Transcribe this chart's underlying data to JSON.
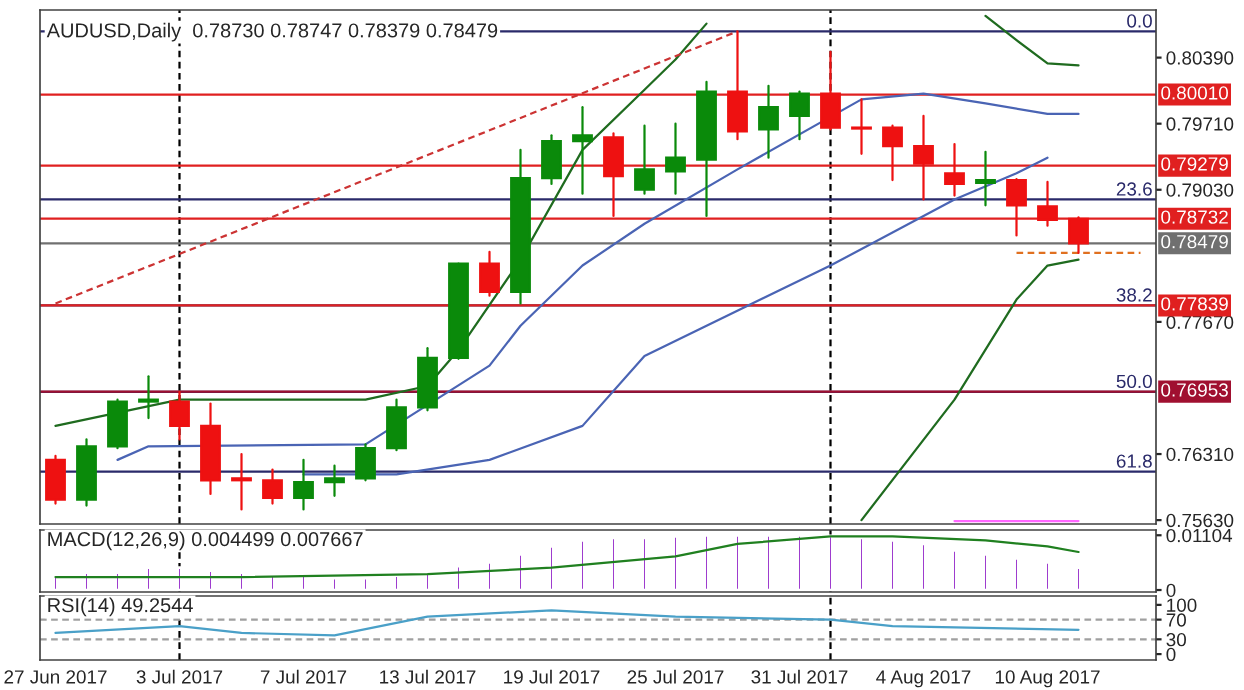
{
  "chart_data": [
    {
      "type": "candlestick",
      "title": "AUDUSD,Daily  0.78730 0.78747 0.78379 0.78479",
      "categories": [
        null,
        null,
        null,
        null,
        null,
        null,
        null,
        null,
        null,
        null,
        null,
        null,
        null,
        null,
        null,
        null,
        null,
        null,
        null,
        null,
        null,
        null,
        null,
        null,
        null,
        null,
        null,
        null,
        null,
        null,
        null,
        null,
        null,
        null,
        null,
        null
      ],
      "ohlc": [
        [
          0.7625,
          0.7629,
          0.758,
          0.7584
        ],
        [
          0.7584,
          0.7646,
          0.7578,
          0.7639
        ],
        [
          0.7639,
          0.7687,
          0.7637,
          0.7685
        ],
        [
          0.7685,
          0.7711,
          0.7668,
          0.7687
        ],
        [
          0.7685,
          0.7695,
          0.7646,
          0.766
        ],
        [
          0.766,
          0.7683,
          0.759,
          0.7604
        ],
        [
          0.7606,
          0.7631,
          0.7574,
          0.7604
        ],
        [
          0.7604,
          0.7615,
          0.758,
          0.7586
        ],
        [
          0.7586,
          0.7625,
          0.7574,
          0.7602
        ],
        [
          0.7602,
          0.7619,
          0.7588,
          0.7606
        ],
        [
          0.7606,
          0.7641,
          0.7604,
          0.7637
        ],
        [
          0.7637,
          0.7687,
          0.7635,
          0.7679
        ],
        [
          0.7679,
          0.774,
          0.7676,
          0.773
        ],
        [
          0.773,
          0.7827,
          0.7729,
          0.7827
        ],
        [
          0.7827,
          0.7839,
          0.7794,
          0.7798
        ],
        [
          0.7798,
          0.7944,
          0.7786,
          0.7915
        ],
        [
          0.7915,
          0.7959,
          0.7909,
          0.7953
        ],
        [
          0.7953,
          0.7988,
          0.7899,
          0.7959
        ],
        [
          0.7957,
          0.7961,
          0.7876,
          0.7917
        ],
        [
          0.7903,
          0.7969,
          0.7899,
          0.7924
        ],
        [
          0.7922,
          0.7971,
          0.7899,
          0.7936
        ],
        [
          0.7934,
          0.8014,
          0.7876,
          0.8004
        ],
        [
          0.8004,
          0.8066,
          0.7955,
          0.7963
        ],
        [
          0.7965,
          0.801,
          0.7936,
          0.7988
        ],
        [
          0.7979,
          0.8004,
          0.7955,
          0.8002
        ],
        [
          0.8002,
          0.8045,
          0.7965,
          0.7967
        ],
        [
          0.7967,
          0.7996,
          0.794,
          0.7966
        ],
        [
          0.7967,
          0.7969,
          0.7913,
          0.7948
        ],
        [
          0.7948,
          0.7979,
          0.7893,
          0.793
        ],
        [
          0.792,
          0.795,
          0.7897,
          0.7909
        ],
        [
          0.791,
          0.7942,
          0.7887,
          0.7913
        ],
        [
          0.7913,
          0.7914,
          0.7856,
          0.7887
        ],
        [
          0.7886,
          0.7911,
          0.7866,
          0.7872
        ],
        [
          0.7873,
          0.78747,
          0.78379,
          0.78479
        ],
        null,
        null
      ],
      "series": [
        {
          "type": "line",
          "color": "#1f6b1f",
          "values": [
            0.766,
            null,
            null,
            null,
            0.7687,
            null,
            null,
            null,
            null,
            null,
            0.7687,
            null,
            0.7701,
            0.7738,
            null,
            0.7831,
            null,
            0.7944,
            null,
            0.8006,
            0.8037,
            0.8074,
            null,
            null,
            null,
            null,
            null,
            null,
            null,
            null,
            null,
            null,
            null,
            null,
            null,
            null
          ]
        },
        {
          "type": "line",
          "color": "#1f6b1f",
          "values": [
            null,
            null,
            null,
            null,
            null,
            null,
            null,
            null,
            null,
            null,
            null,
            null,
            null,
            null,
            null,
            null,
            null,
            null,
            null,
            null,
            null,
            null,
            null,
            null,
            null,
            null,
            null,
            null,
            null,
            null,
            0.8082,
            0.8057,
            0.8033,
            0.8031,
            null,
            null
          ]
        },
        {
          "type": "line",
          "color": "#4a64b4",
          "values": [
            null,
            null,
            0.7625,
            0.7639,
            null,
            null,
            null,
            null,
            null,
            null,
            0.7641,
            null,
            null,
            null,
            0.7722,
            0.7763,
            null,
            0.7825,
            null,
            0.7868,
            null,
            null,
            0.7924,
            null,
            null,
            null,
            0.7996,
            null,
            0.8002,
            null,
            0.7992,
            null,
            0.7981,
            0.7981,
            null,
            null
          ]
        },
        {
          "type": "line",
          "color": "#4a64b4",
          "values": [
            null,
            null,
            null,
            null,
            null,
            null,
            null,
            null,
            0.761,
            null,
            null,
            0.761,
            null,
            null,
            0.7625,
            null,
            null,
            0.766,
            null,
            0.7732,
            null,
            null,
            null,
            null,
            null,
            0.7825,
            null,
            null,
            null,
            0.7893,
            null,
            0.792,
            0.7936,
            null,
            null,
            null
          ]
        },
        {
          "type": "line",
          "color": "#1f6b1f",
          "values": [
            null,
            null,
            null,
            null,
            null,
            null,
            null,
            null,
            null,
            null,
            null,
            null,
            null,
            null,
            null,
            null,
            null,
            null,
            null,
            null,
            null,
            null,
            null,
            null,
            null,
            null,
            0.7563,
            null,
            null,
            0.7687,
            null,
            0.779,
            0.7825,
            0.7831,
            null,
            null
          ]
        },
        {
          "type": "line",
          "color": "#cc3333",
          "line_style": "dashed",
          "values": [
            0.7786,
            null,
            null,
            null,
            null,
            null,
            null,
            null,
            null,
            null,
            null,
            null,
            null,
            null,
            null,
            null,
            null,
            null,
            null,
            null,
            null,
            null,
            0.8066,
            null,
            null,
            null,
            null,
            null,
            null,
            null,
            null,
            null,
            null,
            null,
            null,
            null
          ]
        },
        {
          "type": "line",
          "color": "#e07020",
          "line_style": "dashed",
          "values": [
            null,
            null,
            null,
            null,
            null,
            null,
            null,
            null,
            null,
            null,
            null,
            null,
            null,
            null,
            null,
            null,
            null,
            null,
            null,
            null,
            null,
            null,
            null,
            null,
            null,
            null,
            null,
            null,
            null,
            null,
            null,
            0.7838,
            null,
            null,
            null,
            0.7838
          ]
        },
        {
          "type": "line",
          "color": "#ff66ff",
          "values": [
            null,
            null,
            null,
            null,
            null,
            null,
            null,
            null,
            null,
            null,
            null,
            null,
            null,
            null,
            null,
            null,
            null,
            null,
            null,
            null,
            null,
            null,
            null,
            null,
            null,
            null,
            null,
            null,
            null,
            0.7562,
            null,
            null,
            null,
            0.7562,
            null,
            null
          ]
        }
      ],
      "ref_lines": [
        {
          "axis": "y",
          "value": 0.8066
        },
        {
          "axis": "y",
          "value": 0.7893
        },
        {
          "axis": "y",
          "value": 0.7784
        },
        {
          "axis": "y",
          "value": 0.7695
        },
        {
          "axis": "y",
          "value": 0.7613
        },
        {
          "axis": "y",
          "value": 0.8001,
          "label": "0.80010",
          "color": "#e02020"
        },
        {
          "axis": "y",
          "value": 0.79279,
          "label": "0.79279",
          "color": "#e02020"
        },
        {
          "axis": "y",
          "value": 0.78732,
          "label": "0.78732",
          "color": "#e02020"
        },
        {
          "axis": "y",
          "value": 0.78479,
          "label": "0.78479",
          "color": "#707070"
        },
        {
          "axis": "y",
          "value": 0.77839,
          "label": "0.77839",
          "color": "#e02020"
        },
        {
          "axis": "y",
          "value": 0.76953,
          "label": "0.76953",
          "color": "#a01030"
        }
      ],
      "annotations": [
        {
          "text": "0.0",
          "y": 0.8066
        },
        {
          "text": "23.6",
          "y": 0.7893
        },
        {
          "text": "38.2",
          "y": 0.7784
        },
        {
          "text": "50.0",
          "y": 0.7695
        },
        {
          "text": "61.8",
          "y": 0.7613
        }
      ],
      "ylim": [
        0.7559,
        0.8088
      ],
      "yticks": [
        {
          "value": 0.8039,
          "label": "0.80390"
        },
        {
          "value": 0.7971,
          "label": "0.79710"
        },
        {
          "value": 0.7903,
          "label": "0.79030"
        },
        {
          "value": 0.7767,
          "label": "0.77670"
        },
        {
          "value": 0.7631,
          "label": "0.76310"
        },
        {
          "value": 0.7563,
          "label": "0.75630"
        }
      ],
      "tick_labels": "y"
    },
    {
      "type": "bar",
      "title": "MACD(12,26,9) 0.004499 0.007667",
      "categories": [
        null,
        null,
        null,
        null,
        null,
        null,
        null,
        null,
        null,
        null,
        null,
        null,
        null,
        null,
        null,
        null,
        null,
        null,
        null,
        null,
        null,
        null,
        null,
        null,
        null,
        null,
        null,
        null,
        null,
        null,
        null,
        null,
        null,
        null,
        null,
        null
      ],
      "series": [
        {
          "type": "bar",
          "color": "#9932cc",
          "values": [
            0.0029,
            0.0035,
            0.0035,
            0.0045,
            0.0045,
            0.0039,
            0.0035,
            0.0029,
            0.0029,
            0.0024,
            0.0024,
            0.0029,
            0.0035,
            0.0048,
            0.0056,
            0.0072,
            0.0088,
            0.01,
            0.0105,
            0.0105,
            0.0108,
            0.011,
            0.011,
            0.011,
            0.011,
            0.0109,
            0.0105,
            0.01,
            0.0093,
            0.008,
            0.0072,
            0.0064,
            0.0056,
            0.004499,
            null,
            null
          ]
        },
        {
          "type": "line",
          "color": "#208020",
          "values": [
            0.0026,
            null,
            null,
            null,
            null,
            null,
            0.0026,
            null,
            null,
            null,
            null,
            null,
            0.0032,
            null,
            null,
            null,
            0.0045,
            null,
            null,
            null,
            0.0068,
            null,
            0.0093,
            null,
            null,
            0.0108,
            null,
            0.0108,
            null,
            null,
            0.01,
            null,
            0.0088,
            0.007667,
            null,
            null
          ]
        }
      ],
      "ylim": [
        -0.0004,
        0.0121
      ],
      "yticks": [
        {
          "value": 0.01104,
          "label": "0.01104"
        },
        0
      ],
      "tick_labels": "y"
    },
    {
      "type": "line",
      "title": "RSI(14) 49.2544",
      "categories": [
        "27 Jun 2017",
        null,
        null,
        null,
        "3 Jul 2017",
        null,
        null,
        null,
        "7 Jul 2017",
        null,
        null,
        null,
        "13 Jul 2017",
        null,
        null,
        null,
        "19 Jul 2017",
        null,
        null,
        null,
        "25 Jul 2017",
        null,
        null,
        null,
        "31 Jul 2017",
        null,
        null,
        null,
        "4 Aug 2017",
        null,
        null,
        null,
        "10 Aug 2017",
        null,
        null,
        null
      ],
      "series": [
        {
          "color": "#4aa0c8",
          "values": [
            43,
            null,
            null,
            null,
            57,
            null,
            43,
            null,
            null,
            38,
            null,
            null,
            76,
            null,
            null,
            null,
            89,
            null,
            null,
            null,
            76,
            null,
            null,
            null,
            null,
            70,
            null,
            57,
            null,
            null,
            null,
            null,
            null,
            49.2544,
            null,
            null
          ]
        }
      ],
      "ref_lines": [
        {
          "axis": "y",
          "value": 70,
          "color": "#a0a0a0",
          "line_style": "dashed"
        },
        {
          "axis": "y",
          "value": 30,
          "color": "#a0a0a0",
          "line_style": "dashed"
        }
      ],
      "ylim": [
        -12,
        118
      ],
      "yticks": [
        100,
        70,
        30,
        0
      ]
    }
  ]
}
